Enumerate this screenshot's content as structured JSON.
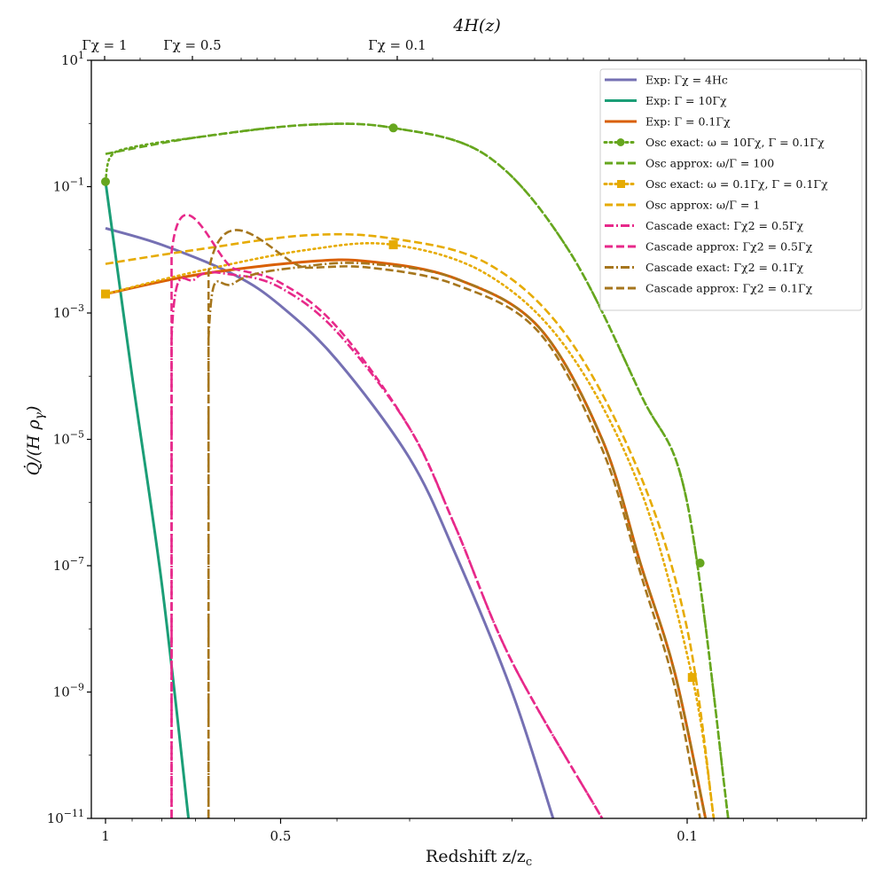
{
  "chart_data": {
    "type": "line",
    "title": "",
    "xlabel": "Redshift z/z_c",
    "ylabel": "Q̇/(H ρ_γ)",
    "xscale": "log (reversed)",
    "yscale": "log",
    "xlim": [
      1.05,
      0.047
    ],
    "ylim": [
      1e-11,
      10
    ],
    "x_ticks": [
      {
        "value": 1,
        "label": "1"
      },
      {
        "value": 0.5,
        "label": "0.5"
      },
      {
        "value": 0.1,
        "label": "0.1"
      }
    ],
    "y_ticks": [
      {
        "value": 10,
        "label": "10",
        "exp": "1"
      },
      {
        "value": 0.1,
        "label": "10",
        "exp": "−1"
      },
      {
        "value": 0.001,
        "label": "10",
        "exp": "−3"
      },
      {
        "value": 1e-05,
        "label": "10",
        "exp": "−5"
      },
      {
        "value": 1e-07,
        "label": "10",
        "exp": "−7"
      },
      {
        "value": 1e-09,
        "label": "10",
        "exp": "−9"
      },
      {
        "value": 1e-11,
        "label": "10",
        "exp": "−11"
      }
    ],
    "secondary_xaxis": {
      "label": "4H(z)",
      "ticks": [
        {
          "label": "Γχ = 1",
          "z": 1.0
        },
        {
          "label": "Γχ = 0.5",
          "z": 0.77
        },
        {
          "label": "Γχ = 0.1",
          "z": 0.32
        }
      ]
    },
    "legend_position": "upper right",
    "grid": false,
    "series": [
      {
        "name": "Exp: Γχ = 4H_c",
        "color": "#7570b3",
        "style": "solid",
        "points": [
          [
            1.0,
            0.022
          ],
          [
            0.8,
            0.012
          ],
          [
            0.6,
            0.004
          ],
          [
            0.5,
            0.0013
          ],
          [
            0.4,
            0.00018
          ],
          [
            0.3,
            5e-06
          ],
          [
            0.25,
            1.5e-07
          ],
          [
            0.2,
            1e-09
          ],
          [
            0.17,
            1e-11
          ]
        ]
      },
      {
        "name": "Exp: Γ = 10Γχ",
        "color": "#1b9e77",
        "style": "solid",
        "points": [
          [
            1.0,
            0.12
          ],
          [
            0.9,
            0.0001
          ],
          [
            0.8,
            5e-08
          ],
          [
            0.72,
            1e-11
          ]
        ]
      },
      {
        "name": "Exp: Γ = 0.1Γχ",
        "color": "#d95f02",
        "style": "solid",
        "points": [
          [
            1.0,
            0.002
          ],
          [
            0.7,
            0.004
          ],
          [
            0.45,
            0.0065
          ],
          [
            0.35,
            0.0065
          ],
          [
            0.25,
            0.0035
          ],
          [
            0.18,
            0.0006
          ],
          [
            0.14,
            1e-05
          ],
          [
            0.12,
            1e-07
          ],
          [
            0.105,
            2e-09
          ],
          [
            0.093,
            1e-11
          ]
        ]
      },
      {
        "name": "Osc exact: ω = 10Γχ, Γ = 0.1Γχ",
        "color": "#66a61e",
        "style": "dotted",
        "marker": "circle",
        "markers": [
          [
            1.0,
            0.12
          ],
          [
            0.32,
            0.85
          ],
          [
            0.095,
            1.1e-07
          ]
        ],
        "points": [
          [
            1.0,
            0.12
          ],
          [
            0.98,
            0.3
          ],
          [
            0.9,
            0.42
          ],
          [
            0.7,
            0.6
          ],
          [
            0.45,
            0.95
          ],
          [
            0.32,
            0.85
          ],
          [
            0.22,
            0.3
          ],
          [
            0.16,
            0.01
          ],
          [
            0.12,
            5e-05
          ],
          [
            0.1,
            1e-06
          ],
          [
            0.085,
            1e-11
          ]
        ]
      },
      {
        "name": "Osc approx: ω/Γ = 100",
        "color": "#66a61e",
        "style": "dashed",
        "points": [
          [
            1.0,
            0.33
          ],
          [
            0.7,
            0.6
          ],
          [
            0.45,
            0.95
          ],
          [
            0.32,
            0.85
          ],
          [
            0.22,
            0.3
          ],
          [
            0.16,
            0.01
          ],
          [
            0.12,
            5e-05
          ],
          [
            0.1,
            1e-06
          ],
          [
            0.085,
            1e-11
          ]
        ]
      },
      {
        "name": "Osc exact: ω = 0.1Γχ, Γ = 0.1Γχ",
        "color": "#e6ab02",
        "style": "dotted",
        "marker": "square",
        "markers": [
          [
            1.0,
            0.002
          ],
          [
            0.32,
            0.012
          ],
          [
            0.098,
            1.7e-09
          ]
        ],
        "points": [
          [
            1.0,
            0.002
          ],
          [
            0.7,
            0.0045
          ],
          [
            0.45,
            0.01
          ],
          [
            0.32,
            0.012
          ],
          [
            0.22,
            0.004
          ],
          [
            0.16,
            0.00025
          ],
          [
            0.12,
            1.5e-06
          ],
          [
            0.098,
            1.7e-09
          ],
          [
            0.09,
            1e-11
          ]
        ]
      },
      {
        "name": "Osc approx: ω/Γ = 1",
        "color": "#e6ab02",
        "style": "dashed",
        "points": [
          [
            1.0,
            0.006
          ],
          [
            0.7,
            0.01
          ],
          [
            0.45,
            0.017
          ],
          [
            0.32,
            0.015
          ],
          [
            0.22,
            0.006
          ],
          [
            0.16,
            0.0004
          ],
          [
            0.12,
            2.5e-06
          ],
          [
            0.1,
            1e-08
          ],
          [
            0.09,
            1e-11
          ]
        ]
      },
      {
        "name": "Cascade exact: Γχ2 = 0.5Γχ",
        "color": "#e7298a",
        "style": "dashdot",
        "points": [
          [
            0.77,
            1e-11
          ],
          [
            0.77,
            0.0004
          ],
          [
            0.7,
            0.0035
          ],
          [
            0.6,
            0.004
          ],
          [
            0.5,
            0.0025
          ],
          [
            0.4,
            0.0005
          ],
          [
            0.3,
            1.5e-05
          ],
          [
            0.25,
            4e-07
          ],
          [
            0.2,
            3e-09
          ],
          [
            0.14,
            1e-11
          ]
        ]
      },
      {
        "name": "Cascade approx: Γχ2 = 0.5Γχ",
        "color": "#e7298a",
        "style": "dashed",
        "points": [
          [
            0.77,
            1e-11
          ],
          [
            0.77,
            0.009
          ],
          [
            0.6,
            0.005
          ],
          [
            0.5,
            0.003
          ],
          [
            0.4,
            0.0006
          ],
          [
            0.3,
            1.5e-05
          ],
          [
            0.25,
            4e-07
          ],
          [
            0.2,
            3e-09
          ],
          [
            0.14,
            1e-11
          ]
        ]
      },
      {
        "name": "Cascade exact: Γχ2 = 0.1Γχ",
        "color": "#a6761d",
        "style": "dashdot",
        "points": [
          [
            0.665,
            1e-11
          ],
          [
            0.665,
            0.0004
          ],
          [
            0.6,
            0.003
          ],
          [
            0.45,
            0.0055
          ],
          [
            0.35,
            0.006
          ],
          [
            0.25,
            0.0035
          ],
          [
            0.18,
            0.0006
          ],
          [
            0.14,
            1e-05
          ],
          [
            0.12,
            1e-07
          ],
          [
            0.105,
            2e-09
          ],
          [
            0.093,
            1e-11
          ]
        ]
      },
      {
        "name": "Cascade approx: Γχ2 = 0.1Γχ",
        "color": "#a6761d",
        "style": "dashed",
        "points": [
          [
            0.665,
            1e-11
          ],
          [
            0.665,
            0.0045
          ],
          [
            0.45,
            0.0052
          ],
          [
            0.35,
            0.0052
          ],
          [
            0.25,
            0.0028
          ],
          [
            0.18,
            0.0005
          ],
          [
            0.14,
            7e-06
          ],
          [
            0.12,
            7e-08
          ],
          [
            0.105,
            1.2e-09
          ],
          [
            0.095,
            1e-11
          ]
        ]
      }
    ]
  },
  "legend": {
    "items": [
      {
        "label": "Exp: Γχ = 4Hc",
        "color": "#7570b3",
        "style": "solid"
      },
      {
        "label": "Exp: Γ = 10Γχ",
        "color": "#1b9e77",
        "style": "solid"
      },
      {
        "label": "Exp: Γ = 0.1Γχ",
        "color": "#d95f02",
        "style": "solid"
      },
      {
        "label": "Osc exact: ω = 10Γχ,  Γ = 0.1Γχ",
        "color": "#66a61e",
        "style": "dotted-circle"
      },
      {
        "label": "Osc approx: ω/Γ = 100",
        "color": "#66a61e",
        "style": "dashed"
      },
      {
        "label": "Osc exact: ω = 0.1Γχ,  Γ = 0.1Γχ",
        "color": "#e6ab02",
        "style": "dotted-square"
      },
      {
        "label": "Osc approx: ω/Γ = 1",
        "color": "#e6ab02",
        "style": "dashed"
      },
      {
        "label": "Cascade exact: Γχ2 = 0.5Γχ",
        "color": "#e7298a",
        "style": "dashdot"
      },
      {
        "label": "Cascade approx: Γχ2 = 0.5Γχ",
        "color": "#e7298a",
        "style": "dashed"
      },
      {
        "label": "Cascade exact: Γχ2 = 0.1Γχ",
        "color": "#a6761d",
        "style": "dashdot"
      },
      {
        "label": "Cascade approx: Γχ2 = 0.1Γχ",
        "color": "#a6761d",
        "style": "dashed"
      }
    ]
  },
  "axes": {
    "xlabel": "Redshift z/z",
    "xlabel_sub": "c",
    "ylabel": "Q̇/(H ρ",
    "ylabel_sub": "γ",
    "ylabel_end": ")",
    "top_label": "4H(z)",
    "top_ticks": [
      "Γχ = 1",
      "Γχ = 0.5",
      "Γχ = 0.1"
    ],
    "x_ticks": [
      "1",
      "0.5",
      "0.1"
    ],
    "y_ticks": [
      {
        "base": "10",
        "exp": "1"
      },
      {
        "base": "10",
        "exp": "−1"
      },
      {
        "base": "10",
        "exp": "−3"
      },
      {
        "base": "10",
        "exp": "−5"
      },
      {
        "base": "10",
        "exp": "−7"
      },
      {
        "base": "10",
        "exp": "−9"
      },
      {
        "base": "10",
        "exp": "−11"
      }
    ]
  }
}
